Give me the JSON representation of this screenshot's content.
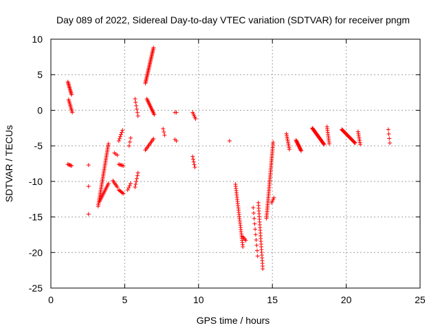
{
  "chart_data": {
    "type": "scatter",
    "title": "Day 089 of 2022, Sidereal Day-to-day VTEC variation (SDTVAR) for receiver pngm",
    "xlabel": "GPS time / hours",
    "ylabel": "SDTVAR / TECUs",
    "xlim": [
      0,
      25
    ],
    "ylim": [
      -25,
      10
    ],
    "xticks": [
      0,
      5,
      10,
      15,
      20,
      25
    ],
    "yticks": [
      10,
      5,
      0,
      -5,
      -10,
      -15,
      -20,
      -25
    ],
    "grid": true,
    "marker": "+",
    "marker_color": "#ff0000",
    "segments": [
      {
        "x0": 1.15,
        "y0": 4.0,
        "x1": 1.4,
        "y1": 2.2,
        "n": 12
      },
      {
        "x0": 1.2,
        "y0": 1.5,
        "x1": 1.45,
        "y1": -0.3,
        "n": 10
      },
      {
        "x0": 1.15,
        "y0": -7.6,
        "x1": 1.4,
        "y1": -7.8,
        "n": 5
      },
      {
        "x0": 2.55,
        "y0": -7.7,
        "x1": 2.55,
        "y1": -7.7,
        "n": 1
      },
      {
        "x0": 2.55,
        "y0": -10.7,
        "x1": 2.55,
        "y1": -10.7,
        "n": 1
      },
      {
        "x0": 2.55,
        "y0": -14.6,
        "x1": 2.55,
        "y1": -14.6,
        "n": 1
      },
      {
        "x0": 3.2,
        "y0": -13.5,
        "x1": 3.9,
        "y1": -4.7,
        "n": 40
      },
      {
        "x0": 3.3,
        "y0": -12.8,
        "x1": 3.9,
        "y1": -10.3,
        "n": 14
      },
      {
        "x0": 4.2,
        "y0": -9.9,
        "x1": 4.5,
        "y1": -10.8,
        "n": 6
      },
      {
        "x0": 4.3,
        "y0": -6.0,
        "x1": 4.5,
        "y1": -6.3,
        "n": 3
      },
      {
        "x0": 4.6,
        "y0": -11.2,
        "x1": 4.9,
        "y1": -11.7,
        "n": 6
      },
      {
        "x0": 4.6,
        "y0": -7.6,
        "x1": 4.9,
        "y1": -7.8,
        "n": 5
      },
      {
        "x0": 4.6,
        "y0": -4.3,
        "x1": 4.85,
        "y1": -2.8,
        "n": 6
      },
      {
        "x0": 5.2,
        "y0": -11.2,
        "x1": 5.4,
        "y1": -10.3,
        "n": 4
      },
      {
        "x0": 5.3,
        "y0": -5.0,
        "x1": 5.4,
        "y1": -3.9,
        "n": 3
      },
      {
        "x0": 5.7,
        "y0": -10.8,
        "x1": 5.9,
        "y1": -8.8,
        "n": 6
      },
      {
        "x0": 5.7,
        "y0": 1.6,
        "x1": 5.9,
        "y1": -0.8,
        "n": 6
      },
      {
        "x0": 6.4,
        "y0": -5.6,
        "x1": 6.95,
        "y1": -4.0,
        "n": 10
      },
      {
        "x0": 6.4,
        "y0": 3.8,
        "x1": 6.95,
        "y1": 8.8,
        "n": 30
      },
      {
        "x0": 6.5,
        "y0": 1.6,
        "x1": 7.0,
        "y1": -0.6,
        "n": 14
      },
      {
        "x0": 7.6,
        "y0": -2.6,
        "x1": 7.7,
        "y1": -3.5,
        "n": 3
      },
      {
        "x0": 8.4,
        "y0": -0.3,
        "x1": 8.5,
        "y1": -0.3,
        "n": 2
      },
      {
        "x0": 8.4,
        "y0": -4.1,
        "x1": 8.5,
        "y1": -4.3,
        "n": 2
      },
      {
        "x0": 9.6,
        "y0": -0.3,
        "x1": 9.8,
        "y1": -1.2,
        "n": 5
      },
      {
        "x0": 9.6,
        "y0": -6.5,
        "x1": 9.75,
        "y1": -8.0,
        "n": 5
      },
      {
        "x0": 12.1,
        "y0": -4.3,
        "x1": 12.1,
        "y1": -4.3,
        "n": 1
      },
      {
        "x0": 12.5,
        "y0": -10.4,
        "x1": 13.0,
        "y1": -19.2,
        "n": 30
      },
      {
        "x0": 13.0,
        "y0": -17.8,
        "x1": 13.2,
        "y1": -18.3,
        "n": 4
      },
      {
        "x0": 13.7,
        "y0": -13.7,
        "x1": 14.0,
        "y1": -20.5,
        "n": 10
      },
      {
        "x0": 14.05,
        "y0": -13.0,
        "x1": 14.35,
        "y1": -22.3,
        "n": 25
      },
      {
        "x0": 14.6,
        "y0": -15.2,
        "x1": 15.05,
        "y1": -4.5,
        "n": 45
      },
      {
        "x0": 14.95,
        "y0": -13.0,
        "x1": 15.1,
        "y1": -12.3,
        "n": 4
      },
      {
        "x0": 15.95,
        "y0": -3.3,
        "x1": 16.15,
        "y1": -5.5,
        "n": 10
      },
      {
        "x0": 16.6,
        "y0": -4.2,
        "x1": 16.95,
        "y1": -5.7,
        "n": 15
      },
      {
        "x0": 17.7,
        "y0": -2.5,
        "x1": 18.5,
        "y1": -4.8,
        "n": 30
      },
      {
        "x0": 18.7,
        "y0": -2.3,
        "x1": 18.85,
        "y1": -4.7,
        "n": 10
      },
      {
        "x0": 19.7,
        "y0": -2.7,
        "x1": 20.6,
        "y1": -4.6,
        "n": 40
      },
      {
        "x0": 20.8,
        "y0": -3.0,
        "x1": 20.95,
        "y1": -4.8,
        "n": 8
      },
      {
        "x0": 22.85,
        "y0": -2.7,
        "x1": 22.95,
        "y1": -4.6,
        "n": 4
      }
    ]
  }
}
